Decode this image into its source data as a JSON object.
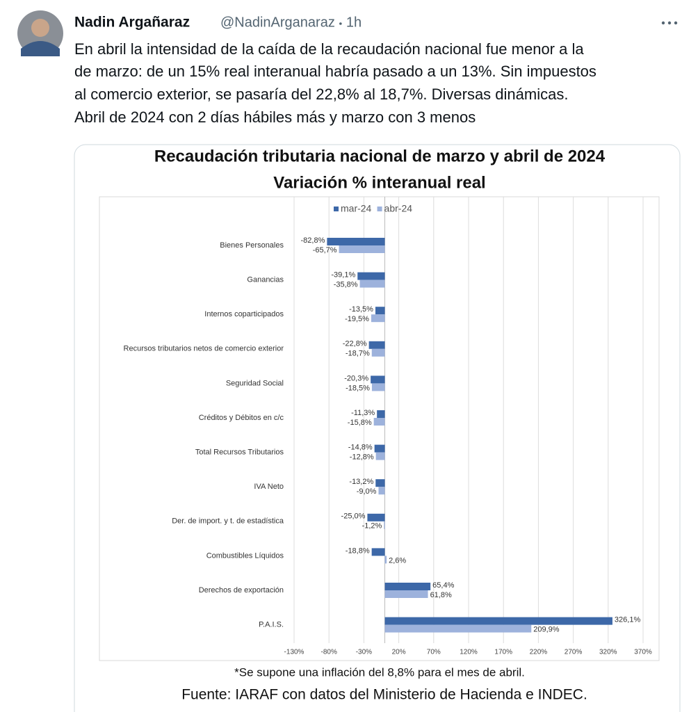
{
  "tweet": {
    "name": "Nadin Argañaraz",
    "handle": "@NadinArganaraz",
    "time": "1h",
    "text_lines": [
      "En abril la intensidad de la caída de la recaudación nacional fue menor a la",
      "de marzo: de un 15% real interanual habría pasado a un 13%. Sin impuestos",
      "al comercio exterior, se pasaría del 22,8% al 18,7%. Diversas dinámicas.",
      "Abril de 2024 con 2 días hábiles más y marzo con 3 menos"
    ]
  },
  "chart_data": {
    "type": "hbar",
    "title": "Recaudación tributaria nacional de marzo y abril de 2024",
    "subtitle": "Variación % interanual real",
    "categories": [
      "Bienes Personales",
      "Ganancias",
      "Internos coparticipados",
      "Recursos tributarios netos de comercio exterior",
      "Seguridad Social",
      "Créditos y Débitos en c/c",
      "Total Recursos Tributarios",
      "IVA Neto",
      "Der. de import. y t. de estadística",
      "Combustibles Líquidos",
      "Derechos de exportación",
      "P.A.I.S."
    ],
    "series": [
      {
        "name": "mar-24",
        "color": "#3d68a8",
        "values": [
          -82.8,
          -39.1,
          -13.5,
          -22.8,
          -20.3,
          -11.3,
          -14.8,
          -13.2,
          -25.0,
          -18.8,
          65.4,
          326.1
        ],
        "value_labels": [
          "-82,8%",
          "-39,1%",
          "-13,5%",
          "-22,8%",
          "-20,3%",
          "-11,3%",
          "-14,8%",
          "-13,2%",
          "-25,0%",
          "-18,8%",
          "65,4%",
          "326,1%"
        ]
      },
      {
        "name": "abr-24",
        "color": "#9db2dc",
        "values": [
          -65.7,
          -35.8,
          -19.5,
          -18.7,
          -18.5,
          -15.8,
          -12.8,
          -9.0,
          -1.2,
          2.6,
          61.8,
          209.9
        ],
        "value_labels": [
          "-65,7%",
          "-35,8%",
          "-19,5%",
          "-18,7%",
          "-18,5%",
          "-15,8%",
          "-12,8%",
          "-9,0%",
          "-1,2%",
          "2,6%",
          "61,8%",
          "209,9%"
        ]
      }
    ],
    "xlim": [
      -130,
      370
    ],
    "xticks": [
      {
        "value": -130,
        "label": "-130%"
      },
      {
        "value": -80,
        "label": "-80%"
      },
      {
        "value": -30,
        "label": "-30%"
      },
      {
        "value": 20,
        "label": "20%"
      },
      {
        "value": 70,
        "label": "70%"
      },
      {
        "value": 120,
        "label": "120%"
      },
      {
        "value": 170,
        "label": "170%"
      },
      {
        "value": 220,
        "label": "220%"
      },
      {
        "value": 270,
        "label": "270%"
      },
      {
        "value": 320,
        "label": "320%"
      },
      {
        "value": 370,
        "label": "370%"
      }
    ],
    "grid": true,
    "legend": "top",
    "notes": [
      "*Se supone una inflación del 8,8% para el mes de abril.",
      "Fuente: IARAF con datos del Ministerio de Hacienda e INDEC."
    ]
  }
}
